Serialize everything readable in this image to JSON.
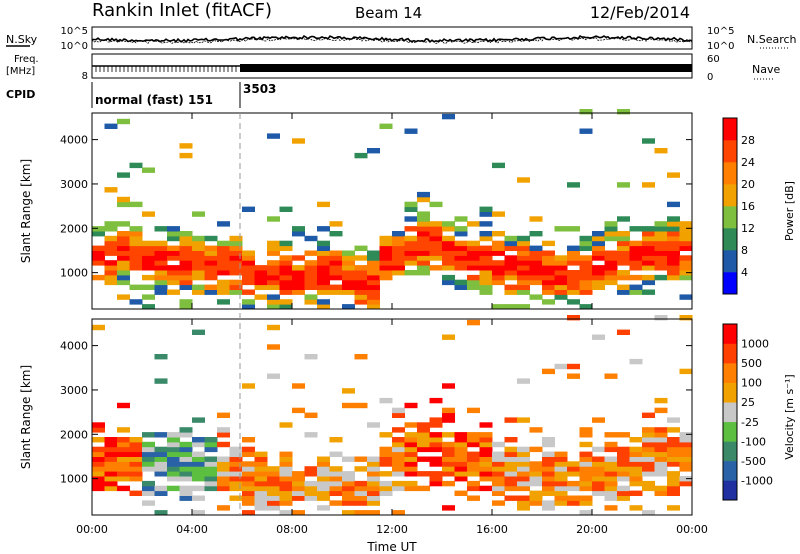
{
  "header": {
    "station": "Rankin Inlet (fitACF)",
    "beam": "Beam 14",
    "date": "12/Feb/2014"
  },
  "noise_panel": {
    "left_label": "N.Sky",
    "right_label": "N.Search",
    "left_ticks": [
      "10^5",
      "10^0"
    ],
    "right_ticks": [
      "10^5",
      "10^0"
    ]
  },
  "freq_panel": {
    "left_label_line1": "Freq.",
    "left_label_line2": "[MHz]",
    "left_tick": "8",
    "right_label": "Nave",
    "right_ticks": [
      "60",
      "0"
    ],
    "nave_value": 55
  },
  "cpid_panel": {
    "label": "CPID",
    "segments": [
      {
        "text": "normal (fast) 151",
        "start_hour": 0
      },
      {
        "text": "3503",
        "start_hour": 6
      }
    ]
  },
  "chart_data": [
    {
      "type": "heatmap",
      "name": "power-panel",
      "ylabel": "Slant Range [km]",
      "ylim": [
        180,
        4600
      ],
      "yticks": [
        1000,
        2000,
        3000,
        4000
      ],
      "xlim": [
        0,
        24
      ],
      "colorbar_label": "Power [dB]",
      "colorbar_ticks": [
        "4",
        "8",
        "12",
        "16",
        "20",
        "24",
        "28"
      ],
      "colors": [
        "#0000ff",
        "#1e5aa8",
        "#2e8b57",
        "#7fbf3f",
        "#f2a200",
        "#ff7f00",
        "#ff4500",
        "#ff0000"
      ],
      "hours": [
        0,
        0.5,
        1,
        1.5,
        2,
        2.5,
        3,
        3.5,
        4,
        4.5,
        5,
        5.5,
        6,
        6.5,
        7,
        7.5,
        8,
        8.5,
        9,
        9.5,
        10,
        10.5,
        11,
        11.5,
        12,
        12.5,
        13,
        13.5,
        14,
        14.5,
        15,
        15.5,
        16,
        16.5,
        17,
        17.5,
        18,
        18.5,
        19,
        19.5,
        20,
        20.5,
        21,
        21.5,
        22,
        22.5,
        23,
        23.5
      ],
      "band_center_km": [
        1300,
        1400,
        1500,
        1350,
        1300,
        1250,
        1200,
        1150,
        1200,
        1100,
        1100,
        1050,
        1000,
        950,
        900,
        850,
        800,
        900,
        950,
        1000,
        800,
        700,
        700,
        1300,
        1300,
        1450,
        1600,
        1550,
        1400,
        1300,
        1250,
        1200,
        1150,
        1100,
        1050,
        1000,
        900,
        900,
        950,
        1000,
        1050,
        1100,
        1200,
        1300,
        1350,
        1400,
        1400,
        1450
      ]
    },
    {
      "type": "heatmap",
      "name": "velocity-panel",
      "ylabel": "Slant Range [km]",
      "ylim": [
        180,
        4600
      ],
      "yticks": [
        1000,
        2000,
        3000,
        4000
      ],
      "xlim": [
        0,
        24
      ],
      "xticks": [
        "00:00",
        "04:00",
        "08:00",
        "12:00",
        "16:00",
        "20:00",
        "00:00"
      ],
      "xlabel": "Time UT",
      "colorbar_label": "Velocity [m s⁻¹]",
      "colorbar_ticks": [
        "1000",
        "500",
        "100",
        "25",
        "-25",
        "-100",
        "-500",
        "-1000"
      ],
      "colors": [
        "#2030a0",
        "#2a62a8",
        "#3a8a6a",
        "#5cbf40",
        "#c8c8c8",
        "#f2a200",
        "#ff7f00",
        "#ff4000",
        "#ff0000"
      ],
      "hours": [
        0,
        0.5,
        1,
        1.5,
        2,
        2.5,
        3,
        3.5,
        4,
        4.5,
        5,
        5.5,
        6,
        6.5,
        7,
        7.5,
        8,
        8.5,
        9,
        9.5,
        10,
        10.5,
        11,
        11.5,
        12,
        12.5,
        13,
        13.5,
        14,
        14.5,
        15,
        15.5,
        16,
        16.5,
        17,
        17.5,
        18,
        18.5,
        19,
        19.5,
        20,
        20.5,
        21,
        21.5,
        22,
        22.5,
        23,
        23.5
      ],
      "band_center_km": [
        1350,
        1400,
        1450,
        1350,
        1300,
        1300,
        1250,
        1200,
        1200,
        1150,
        1100,
        1050,
        1000,
        950,
        900,
        850,
        800,
        850,
        900,
        900,
        800,
        700,
        700,
        1300,
        1300,
        1500,
        1650,
        1600,
        1450,
        1350,
        1300,
        1250,
        1150,
        1100,
        1050,
        1000,
        950,
        950,
        1000,
        1050,
        1100,
        1150,
        1200,
        1250,
        1300,
        1350,
        1400,
        1450
      ]
    }
  ]
}
